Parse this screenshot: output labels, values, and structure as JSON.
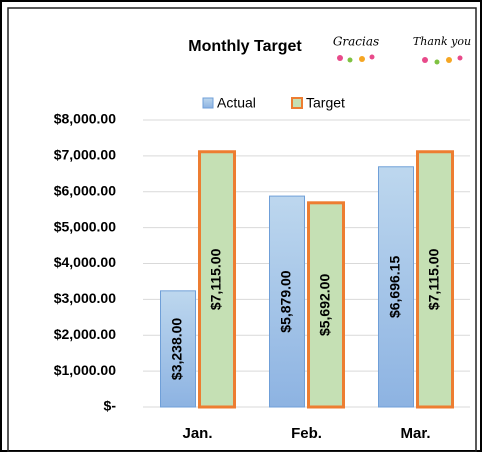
{
  "chart_data": {
    "type": "bar",
    "title": "Monthly Target",
    "annotations": [
      "Gracias",
      "Thank you"
    ],
    "categories": [
      "Jan.",
      "Feb.",
      "Mar."
    ],
    "series": [
      {
        "name": "Actual",
        "color": "#9dc3e6",
        "edge": "#6f9fd8",
        "values": [
          3238,
          5879,
          6696.15
        ],
        "value_labels": [
          "$3,238.00",
          "$5,879.00",
          "$6,696.15"
        ]
      },
      {
        "name": "Target",
        "color": "#c5e0b4",
        "edge": "#ed7d31",
        "values": [
          7115,
          5692,
          7115
        ],
        "value_labels": [
          "$7,115.00",
          "$5,692.00",
          "$7,115.00"
        ]
      }
    ],
    "ylim": [
      0,
      8000
    ],
    "yticks": [
      {
        "value": 0,
        "label": "$-"
      },
      {
        "value": 1000,
        "label": "$1,000.00"
      },
      {
        "value": 2000,
        "label": "$2,000.00"
      },
      {
        "value": 3000,
        "label": "$3,000.00"
      },
      {
        "value": 4000,
        "label": "$4,000.00"
      },
      {
        "value": 5000,
        "label": "$5,000.00"
      },
      {
        "value": 6000,
        "label": "$6,000.00"
      },
      {
        "value": 7000,
        "label": "$7,000.00"
      },
      {
        "value": 8000,
        "label": "$8,000.00"
      }
    ],
    "grid": true,
    "legend": "top"
  }
}
